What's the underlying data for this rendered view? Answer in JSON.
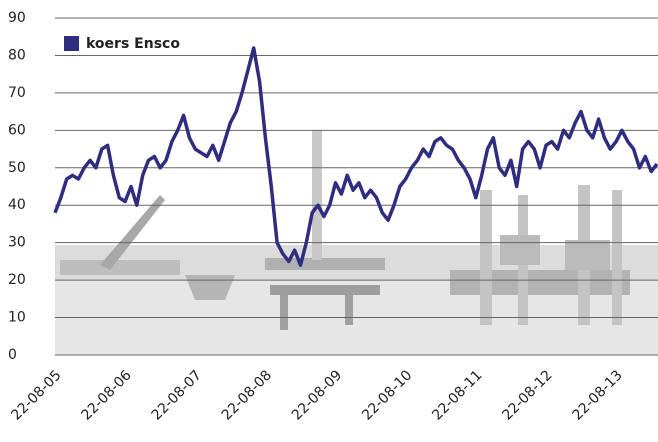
{
  "chart_data": {
    "type": "line",
    "categories": [
      "22-08-05",
      null,
      null,
      null,
      null,
      null,
      null,
      null,
      null,
      null,
      null,
      null,
      "22-08-06",
      null,
      null,
      null,
      null,
      null,
      null,
      null,
      null,
      null,
      null,
      null,
      "22-08-07",
      null,
      null,
      null,
      null,
      null,
      null,
      null,
      null,
      null,
      null,
      null,
      "22-08-08",
      null,
      null,
      null,
      null,
      null,
      null,
      null,
      null,
      null,
      null,
      null,
      "22-08-09",
      null,
      null,
      null,
      null,
      null,
      null,
      null,
      null,
      null,
      null,
      null,
      "22-08-10",
      null,
      null,
      null,
      null,
      null,
      null,
      null,
      null,
      null,
      null,
      null,
      "22-08-11",
      null,
      null,
      null,
      null,
      null,
      null,
      null,
      null,
      null,
      null,
      null,
      "22-08-12",
      null,
      null,
      null,
      null,
      null,
      null,
      null,
      null,
      null,
      null,
      null,
      "22-08-13",
      null,
      null,
      null,
      null,
      null,
      null,
      null
    ],
    "series": [
      {
        "name": "koers Ensco",
        "color": "#2e2d80",
        "values": [
          38,
          42,
          47,
          48,
          47,
          50,
          52,
          50,
          55,
          56,
          48,
          42,
          41,
          45,
          40,
          48,
          52,
          53,
          50,
          52,
          57,
          60,
          64,
          58,
          55,
          54,
          53,
          56,
          52,
          57,
          62,
          65,
          70,
          76,
          82,
          73,
          58,
          45,
          30,
          27,
          25,
          28,
          24,
          30,
          38,
          40,
          37,
          40,
          46,
          43,
          48,
          44,
          46,
          42,
          44,
          42,
          38,
          36,
          40,
          45,
          47,
          50,
          52,
          55,
          53,
          57,
          58,
          56,
          55,
          52,
          50,
          47,
          42,
          48,
          55,
          58,
          50,
          48,
          52,
          45,
          55,
          57,
          55,
          50,
          56,
          57,
          55,
          60,
          58,
          62,
          65,
          60,
          58,
          63,
          58,
          55,
          57,
          60,
          57,
          55,
          50,
          53,
          49,
          51
        ]
      }
    ],
    "ylim": [
      0,
      90
    ],
    "yticks": [
      0,
      10,
      20,
      30,
      40,
      50,
      60,
      70,
      80,
      90
    ],
    "grid": true,
    "legend": "top-left"
  }
}
